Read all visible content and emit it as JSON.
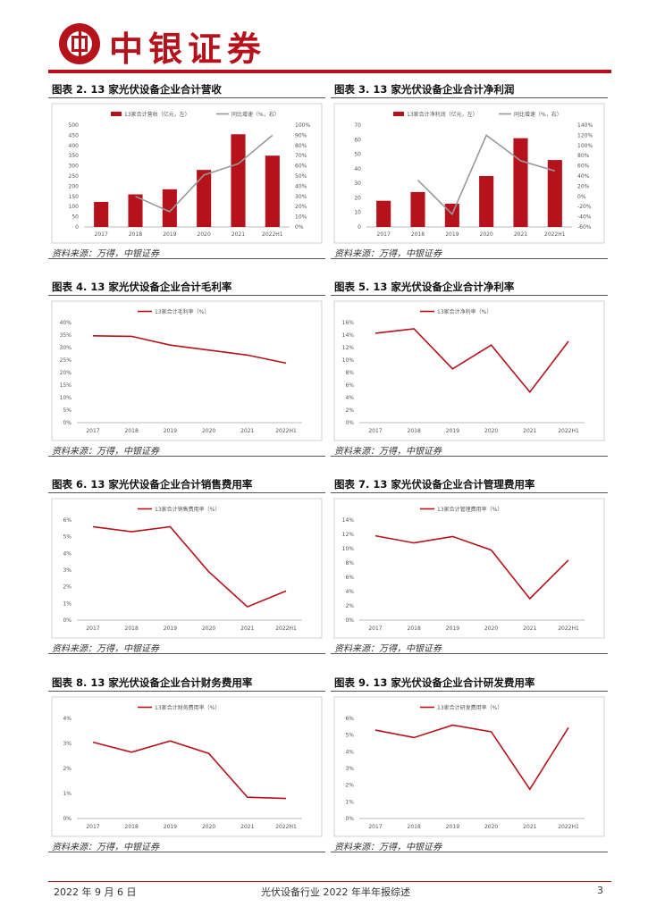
{
  "header": {
    "brand": "中银证券"
  },
  "source_text": "资料来源：万得，中银证券",
  "footer": {
    "date": "2022 年 9 月 6 日",
    "title": "光伏设备行业 2022 年半年报综述",
    "page": "3"
  },
  "colors": {
    "accent": "#b5121b",
    "gray_line": "#999999"
  },
  "charts": [
    {
      "title": "图表 2. 13 家光伏设备企业合计营收",
      "chart_data": {
        "type": "bar",
        "categories": [
          "2017",
          "2018",
          "2019",
          "2020",
          "2021",
          "2022H1"
        ],
        "series": [
          {
            "name": "13家合计营收（亿元，左）",
            "kind": "bar",
            "axis": "left",
            "values": [
              123,
              160,
              185,
              280,
              455,
              350
            ]
          },
          {
            "name": "同比增速（%，右）",
            "kind": "line",
            "axis": "right",
            "values": [
              null,
              30,
              15,
              51,
              62,
              90
            ]
          }
        ],
        "ylim_left": [
          0,
          500
        ],
        "yticks_left": [
          "0",
          "50",
          "100",
          "150",
          "200",
          "250",
          "300",
          "350",
          "400",
          "450",
          "500"
        ],
        "ylim_right": [
          0,
          100
        ],
        "yticks_right": [
          "0%",
          "10%",
          "20%",
          "30%",
          "40%",
          "50%",
          "60%",
          "70%",
          "80%",
          "90%",
          "100%"
        ]
      }
    },
    {
      "title": "图表 3. 13 家光伏设备企业合计净利润",
      "chart_data": {
        "type": "bar",
        "categories": [
          "2017",
          "2018",
          "2019",
          "2020",
          "2021",
          "2022H1"
        ],
        "series": [
          {
            "name": "13家合计净利润（亿元，左）",
            "kind": "bar",
            "axis": "left",
            "values": [
              18,
              24,
              16,
              35,
              61,
              46
            ]
          },
          {
            "name": "同比增速（%，右）",
            "kind": "line",
            "axis": "right",
            "values": [
              null,
              32,
              -35,
              120,
              70,
              50
            ]
          }
        ],
        "ylim_left": [
          0,
          70
        ],
        "yticks_left": [
          "0",
          "10",
          "20",
          "30",
          "40",
          "50",
          "60",
          "70"
        ],
        "ylim_right": [
          -60,
          140
        ],
        "yticks_right": [
          "-60%",
          "-40%",
          "-20%",
          "0%",
          "20%",
          "40%",
          "60%",
          "80%",
          "100%",
          "120%",
          "140%"
        ]
      }
    },
    {
      "title": "图表 4. 13 家光伏设备企业合计毛利率",
      "chart_data": {
        "type": "line",
        "categories": [
          "2017",
          "2018",
          "2019",
          "2020",
          "2021",
          "2022H1"
        ],
        "series": [
          {
            "name": "13家合计毛利率（%）",
            "values": [
              34.7,
              34.5,
              31.0,
              29.0,
              27.0,
              23.8
            ]
          }
        ],
        "ylim": [
          0,
          40
        ],
        "yticks": [
          "0%",
          "5%",
          "10%",
          "15%",
          "20%",
          "25%",
          "30%",
          "35%",
          "40%"
        ]
      }
    },
    {
      "title": "图表 5. 13 家光伏设备企业合计净利率",
      "chart_data": {
        "type": "line",
        "categories": [
          "2017",
          "2018",
          "2019",
          "2020",
          "2021",
          "2022H1"
        ],
        "series": [
          {
            "name": "13家合计净利率（%）",
            "values": [
              14.3,
              15.0,
              8.6,
              12.4,
              4.9,
              13.0
            ]
          }
        ],
        "ylim": [
          0,
          16
        ],
        "yticks": [
          "0%",
          "2%",
          "4%",
          "6%",
          "8%",
          "10%",
          "12%",
          "14%",
          "16%"
        ]
      }
    },
    {
      "title": "图表 6. 13 家光伏设备企业合计销售费用率",
      "chart_data": {
        "type": "line",
        "categories": [
          "2017",
          "2018",
          "2019",
          "2020",
          "2021",
          "2022H1"
        ],
        "series": [
          {
            "name": "13家合计销售费用率（%）",
            "values": [
              5.6,
              5.3,
              5.6,
              2.9,
              0.8,
              1.75
            ]
          }
        ],
        "ylim": [
          0,
          6
        ],
        "yticks": [
          "0%",
          "1%",
          "2%",
          "3%",
          "4%",
          "5%",
          "6%"
        ]
      }
    },
    {
      "title": "图表 7. 13 家光伏设备企业合计管理费用率",
      "chart_data": {
        "type": "line",
        "categories": [
          "2017",
          "2018",
          "2019",
          "2020",
          "2021",
          "2022H1"
        ],
        "series": [
          {
            "name": "13家合计管理费用率（%）",
            "values": [
              11.8,
              10.8,
              11.7,
              9.8,
              3.0,
              8.4
            ]
          }
        ],
        "ylim": [
          0,
          14
        ],
        "yticks": [
          "0%",
          "2%",
          "4%",
          "6%",
          "8%",
          "10%",
          "12%",
          "14%"
        ]
      }
    },
    {
      "title": "图表 8. 13 家光伏设备企业合计财务费用率",
      "chart_data": {
        "type": "line",
        "categories": [
          "2017",
          "2018",
          "2019",
          "2020",
          "2021",
          "2022H1"
        ],
        "series": [
          {
            "name": "13家合计财务费用率（%）",
            "values": [
              3.05,
              2.65,
              3.1,
              2.6,
              0.85,
              0.8
            ]
          }
        ],
        "ylim": [
          0,
          4
        ],
        "yticks": [
          "0%",
          "1%",
          "2%",
          "3%",
          "4%"
        ]
      }
    },
    {
      "title": "图表 9. 13 家光伏设备企业合计研发费用率",
      "chart_data": {
        "type": "line",
        "categories": [
          "2017",
          "2018",
          "2019",
          "2020",
          "2021",
          "2022H1"
        ],
        "series": [
          {
            "name": "13家合计研发费用率（%）",
            "values": [
              5.3,
              4.85,
              5.6,
              5.2,
              1.75,
              5.45
            ]
          }
        ],
        "ylim": [
          0,
          6
        ],
        "yticks": [
          "0%",
          "1%",
          "2%",
          "3%",
          "4%",
          "5%",
          "6%"
        ]
      }
    }
  ]
}
